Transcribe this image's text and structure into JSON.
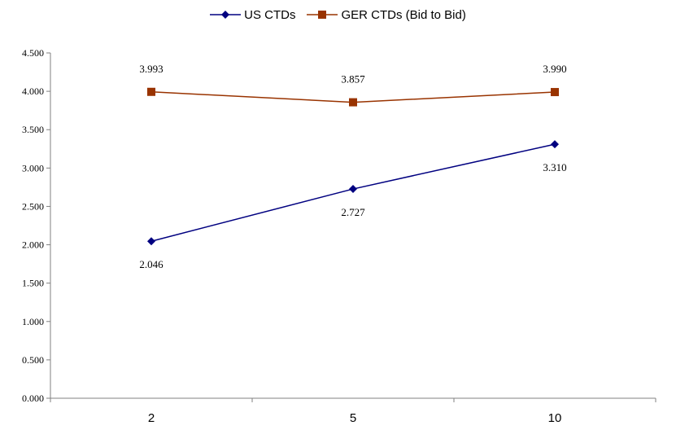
{
  "chart_data": {
    "type": "line",
    "title": "",
    "xlabel": "",
    "ylabel": "",
    "categories": [
      "2",
      "5",
      "10"
    ],
    "ylim": [
      0,
      4.5
    ],
    "y_ticks": [
      "0.000",
      "0.500",
      "1.000",
      "1.500",
      "2.000",
      "2.500",
      "3.000",
      "3.500",
      "4.000",
      "4.500"
    ],
    "legend_position": "top-center",
    "grid": false,
    "series": [
      {
        "name": "US CTDs",
        "color": "#000080",
        "marker": "diamond",
        "values": [
          2.046,
          2.727,
          3.31
        ],
        "labels": [
          "2.046",
          "2.727",
          "3.310"
        ],
        "label_position": "below"
      },
      {
        "name": "GER CTDs (Bid to Bid)",
        "color": "#993300",
        "marker": "square",
        "values": [
          3.993,
          3.857,
          3.99
        ],
        "labels": [
          "3.993",
          "3.857",
          "3.990"
        ],
        "label_position": "above"
      }
    ]
  }
}
